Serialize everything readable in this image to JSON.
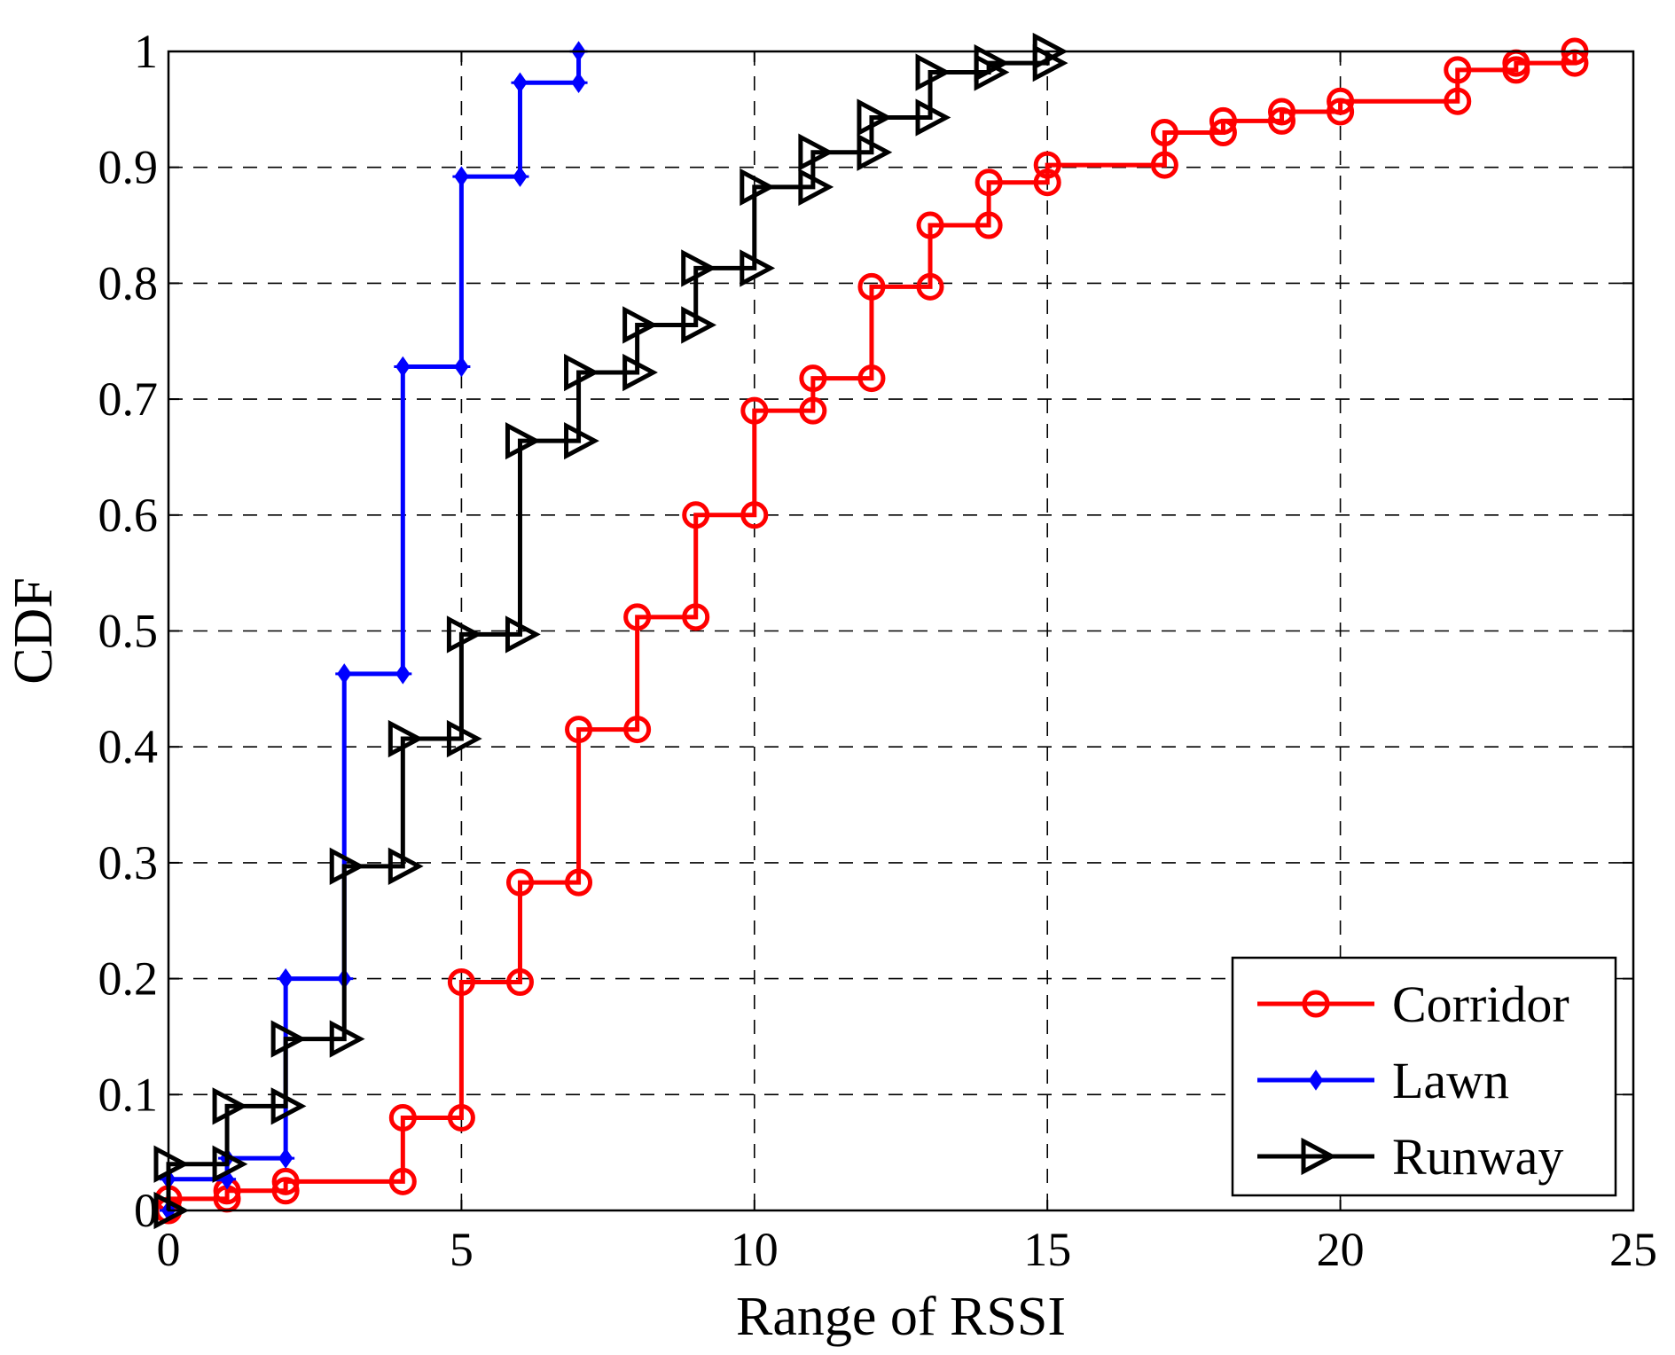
{
  "chart_data": {
    "type": "line",
    "step": "post",
    "title": "",
    "xlabel": "Range of RSSI",
    "ylabel": "CDF",
    "xlim": [
      0,
      25
    ],
    "ylim": [
      0,
      1
    ],
    "xticks": [
      0,
      5,
      10,
      15,
      20,
      25
    ],
    "yticks": [
      0,
      0.1,
      0.2,
      0.3,
      0.4,
      0.5,
      0.6,
      0.7,
      0.8,
      0.9,
      1
    ],
    "xtick_labels": [
      "0",
      "5",
      "10",
      "15",
      "20",
      "25"
    ],
    "ytick_labels": [
      "0",
      "0.1",
      "0.2",
      "0.3",
      "0.4",
      "0.5",
      "0.6",
      "0.7",
      "0.8",
      "0.9",
      "1"
    ],
    "grid": true,
    "legend_position": "bottom-right",
    "series": [
      {
        "name": "Corridor",
        "color": "#ff0000",
        "marker": "circle",
        "x": [
          0,
          1,
          2,
          4,
          5,
          6,
          7,
          8,
          9,
          10,
          11,
          12,
          13,
          14,
          15,
          17,
          18,
          19,
          20,
          22,
          23,
          24
        ],
        "y": [
          0.01,
          0.017,
          0.025,
          0.08,
          0.197,
          0.283,
          0.415,
          0.512,
          0.6,
          0.69,
          0.718,
          0.797,
          0.85,
          0.887,
          0.902,
          0.93,
          0.94,
          0.948,
          0.957,
          0.984,
          0.99,
          1.0
        ]
      },
      {
        "name": "Lawn",
        "color": "#0000ff",
        "marker": "diamond",
        "x": [
          0,
          1,
          2,
          3,
          4,
          5,
          6,
          7
        ],
        "y": [
          0.027,
          0.045,
          0.2,
          0.463,
          0.728,
          0.892,
          0.973,
          1.0
        ]
      },
      {
        "name": "Runway",
        "color": "#000000",
        "marker": "triangle-right",
        "x": [
          0,
          1,
          2,
          3,
          4,
          5,
          6,
          7,
          8,
          9,
          10,
          11,
          12,
          13,
          14,
          15
        ],
        "y": [
          0.04,
          0.09,
          0.148,
          0.297,
          0.407,
          0.497,
          0.664,
          0.723,
          0.764,
          0.813,
          0.883,
          0.913,
          0.943,
          0.982,
          0.99,
          1.0
        ]
      }
    ]
  }
}
